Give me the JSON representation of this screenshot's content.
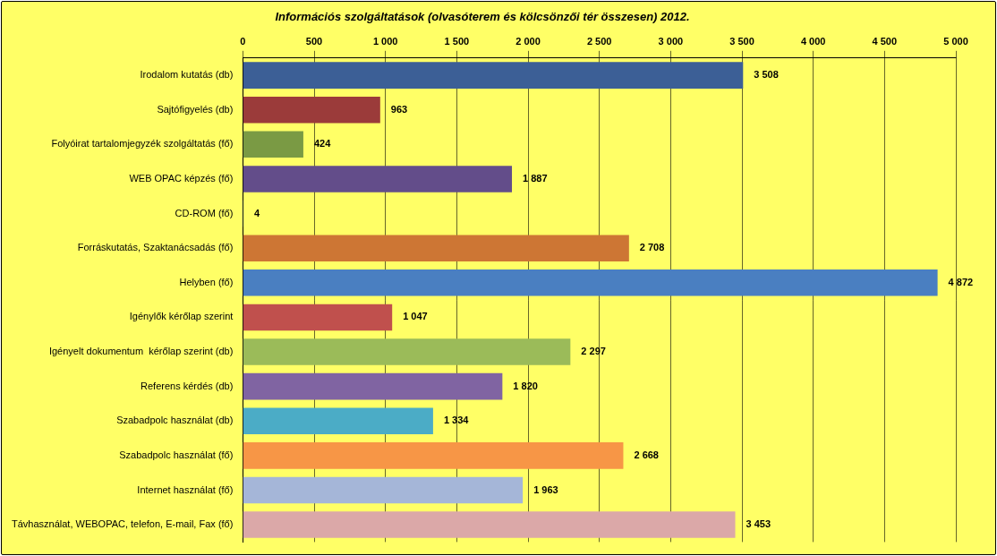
{
  "chart_data": {
    "type": "bar",
    "orientation": "horizontal",
    "title": "Információs szolgáltatások (olvasóterem és kölcsönzői tér összesen) 2012.",
    "categories": [
      "Irodalom kutatás (db)",
      "Sajtófigyelés (db)",
      "Folyóirat tartalomjegyzék szolgáltatás (fő)",
      "WEB OPAC képzés (fő)",
      "CD-ROM (fő)",
      "Forráskutatás, Szaktanácsadás (fő)",
      "Helyben (fő)",
      "Igénylők kérőlap szerint",
      "Igényelt dokumentum  kérőlap szerint (db)",
      "Referens kérdés (db)",
      "Szabadpolc használat (db)",
      "Szabadpolc használat (fő)",
      "Internet használat (fő)",
      "Távhasználat, WEBOPAC, telefon, E-mail, Fax (fő)"
    ],
    "values": [
      3508,
      963,
      424,
      1887,
      4,
      2708,
      4872,
      1047,
      2297,
      1820,
      1334,
      2668,
      1963,
      3453
    ],
    "value_labels": [
      "3 508",
      "963",
      "424",
      "1 887",
      "4",
      "2 708",
      "4 872",
      "1 047",
      "2 297",
      "1 820",
      "1 334",
      "2 668",
      "1 963",
      "3 453"
    ],
    "colors": [
      "#3c5f96",
      "#9b3b3a",
      "#7a9a44",
      "#634d8a",
      "#2f6b86",
      "#cd7634",
      "#4a7fc1",
      "#c0504d",
      "#9bbb59",
      "#8064a2",
      "#4bacc6",
      "#f79646",
      "#a5b6d8",
      "#dba8a8"
    ],
    "xlim": [
      0,
      5000
    ],
    "xticks": [
      0,
      500,
      {
        "value": 1000,
        "label": "1 000"
      },
      {
        "value": 1500,
        "label": "1 500"
      },
      {
        "value": 2000,
        "label": "2 000"
      },
      {
        "value": 2500,
        "label": "2 500"
      },
      {
        "value": 3000,
        "label": "3 000"
      },
      {
        "value": 3500,
        "label": "3 500"
      },
      {
        "value": 4000,
        "label": "4 000"
      },
      {
        "value": 4500,
        "label": "4 500"
      },
      {
        "value": 5000,
        "label": "5 000"
      }
    ],
    "grid": true,
    "data_labels": true
  }
}
